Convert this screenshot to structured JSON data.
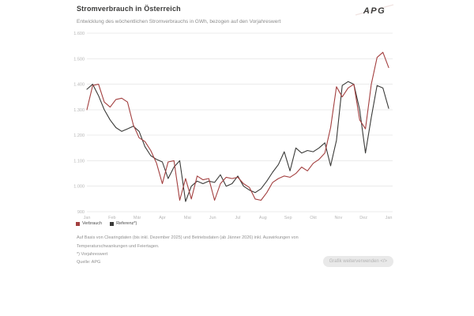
{
  "header": {
    "title": "Stromverbrauch in Österreich",
    "subtitle": "Entwicklung des wöchentlichen Stromverbrauchs in GWh, bezogen auf den Vorjahreswert",
    "logo": "APG"
  },
  "chart_data": {
    "type": "line",
    "title": "Stromverbrauch in Österreich",
    "ylabel": "GWh",
    "ylim": [
      900,
      1600
    ],
    "grid": "horizontal",
    "legend_position": "bottom-left",
    "month_labels": [
      "Jan",
      "Feb",
      "Mär",
      "Apr",
      "Mai",
      "Jun",
      "Jul",
      "Aug",
      "Sep",
      "Okt",
      "Nov",
      "Dez",
      "Jan"
    ],
    "yticks": [
      900,
      1000,
      1100,
      1200,
      1300,
      1400,
      1500,
      1600
    ],
    "ytick_labels": [
      "900",
      "1.000",
      "1.100",
      "1.200",
      "1.300",
      "1.400",
      "1.500",
      "1.600"
    ],
    "x_unit": "week",
    "series": [
      {
        "name": "Verbrauch",
        "color": "#a33f3f",
        "values": [
          1300,
          1395,
          1400,
          1330,
          1310,
          1340,
          1345,
          1330,
          1240,
          1190,
          1175,
          1140,
          1090,
          1010,
          1095,
          1100,
          945,
          1030,
          950,
          1040,
          1025,
          1030,
          945,
          1010,
          1035,
          1030,
          1035,
          1010,
          995,
          950,
          945,
          975,
          1015,
          1030,
          1040,
          1035,
          1050,
          1075,
          1060,
          1090,
          1105,
          1130,
          1230,
          1390,
          1350,
          1385,
          1400,
          1260,
          1225,
          1400,
          1505,
          1525,
          1465
        ]
      },
      {
        "name": "Referenz*)",
        "color": "#3a3a38",
        "values": [
          1380,
          1400,
          1355,
          1300,
          1260,
          1230,
          1215,
          1225,
          1235,
          1215,
          1155,
          1120,
          1105,
          1095,
          1030,
          1075,
          1100,
          940,
          1000,
          1020,
          1010,
          1020,
          1015,
          1045,
          1000,
          1010,
          1040,
          1000,
          985,
          975,
          990,
          1020,
          1055,
          1085,
          1135,
          1060,
          1150,
          1130,
          1140,
          1135,
          1150,
          1170,
          1080,
          1180,
          1395,
          1410,
          1400,
          1300,
          1130,
          1270,
          1395,
          1385,
          1305
        ]
      }
    ]
  },
  "footnotes": {
    "text": "Auf Basis von Clearingdaten (bis inkl. Dezember 2025) und Betriebsdaten (ab Jänner 2026) inkl. Auswirkungen von Temperaturschwankungen und Feiertagen.",
    "reference": "*) Vorjahreswert",
    "source": "Quelle: APG"
  },
  "actions": {
    "reuse_button": "Grafik weiterverwenden </>"
  },
  "colors": {
    "verbrauch": "#a33f3f",
    "referenz": "#3a3a38",
    "grid": "#ebebeb",
    "tick_text": "#b5b5b5"
  }
}
